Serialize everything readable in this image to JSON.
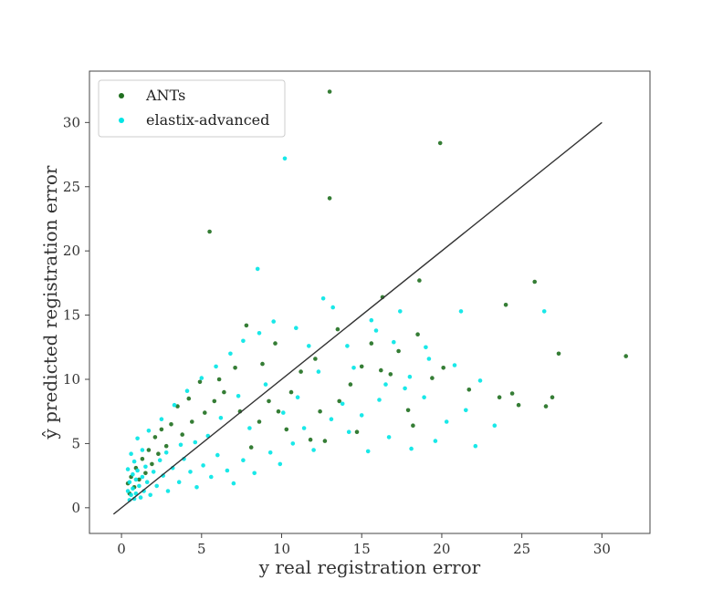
{
  "chart_data": {
    "type": "scatter",
    "xlabel": "y real registration error",
    "ylabel": "ŷ predicted registration error",
    "x_ticks": [
      0,
      5,
      10,
      15,
      20,
      25,
      30
    ],
    "y_ticks": [
      0,
      5,
      10,
      15,
      20,
      25,
      30
    ],
    "xlim": [
      -2,
      33
    ],
    "ylim": [
      -2,
      34
    ],
    "grid": false,
    "legend_position": "top-left",
    "reference_line": {
      "from": [
        -0.5,
        -0.5
      ],
      "to": [
        30,
        30
      ],
      "color": "#333333"
    },
    "series": [
      {
        "name": "ANTs",
        "color": "#1f6f1f",
        "points": [
          [
            13.0,
            32.4
          ],
          [
            19.9,
            28.4
          ],
          [
            13.0,
            24.1
          ],
          [
            5.5,
            21.5
          ],
          [
            18.6,
            17.7
          ],
          [
            25.8,
            17.6
          ],
          [
            16.3,
            16.4
          ],
          [
            24.0,
            15.8
          ],
          [
            31.5,
            11.8
          ],
          [
            27.3,
            12.0
          ],
          [
            26.9,
            8.6
          ],
          [
            26.5,
            7.9
          ],
          [
            24.8,
            8.0
          ],
          [
            24.4,
            8.9
          ],
          [
            23.6,
            8.6
          ],
          [
            20.1,
            10.9
          ],
          [
            18.5,
            13.5
          ],
          [
            17.3,
            12.2
          ],
          [
            16.2,
            10.7
          ],
          [
            15.0,
            11.0
          ],
          [
            14.3,
            9.6
          ],
          [
            13.6,
            8.3
          ],
          [
            12.4,
            7.5
          ],
          [
            11.8,
            5.3
          ],
          [
            12.7,
            5.2
          ],
          [
            10.6,
            9.0
          ],
          [
            9.8,
            7.5
          ],
          [
            9.2,
            8.3
          ],
          [
            8.6,
            6.7
          ],
          [
            7.4,
            7.5
          ],
          [
            7.1,
            10.9
          ],
          [
            6.4,
            9.0
          ],
          [
            6.1,
            10.0
          ],
          [
            5.8,
            8.3
          ],
          [
            5.2,
            7.4
          ],
          [
            4.9,
            9.8
          ],
          [
            4.4,
            6.7
          ],
          [
            4.2,
            8.5
          ],
          [
            3.8,
            5.7
          ],
          [
            3.5,
            7.9
          ],
          [
            3.1,
            6.5
          ],
          [
            2.8,
            4.8
          ],
          [
            2.5,
            6.1
          ],
          [
            2.3,
            4.2
          ],
          [
            2.1,
            5.5
          ],
          [
            1.9,
            3.4
          ],
          [
            1.7,
            4.5
          ],
          [
            1.5,
            2.7
          ],
          [
            1.3,
            3.8
          ],
          [
            1.1,
            2.2
          ],
          [
            0.9,
            3.1
          ],
          [
            0.8,
            1.6
          ],
          [
            0.6,
            2.4
          ],
          [
            0.5,
            1.1
          ],
          [
            0.4,
            1.9
          ],
          [
            11.2,
            10.6
          ],
          [
            12.1,
            11.6
          ],
          [
            8.8,
            11.2
          ],
          [
            9.6,
            12.8
          ],
          [
            7.8,
            14.2
          ],
          [
            13.5,
            13.9
          ],
          [
            15.6,
            12.8
          ],
          [
            16.8,
            10.4
          ],
          [
            17.9,
            7.6
          ],
          [
            19.4,
            10.1
          ],
          [
            21.7,
            9.2
          ],
          [
            18.2,
            6.4
          ],
          [
            14.7,
            5.9
          ],
          [
            10.3,
            6.1
          ],
          [
            8.1,
            4.7
          ]
        ]
      },
      {
        "name": "elastix-advanced",
        "color": "#00e5e5",
        "points": [
          [
            10.2,
            27.2
          ],
          [
            8.5,
            18.6
          ],
          [
            12.6,
            16.3
          ],
          [
            13.2,
            15.6
          ],
          [
            21.2,
            15.3
          ],
          [
            26.4,
            15.3
          ],
          [
            17.4,
            15.3
          ],
          [
            15.6,
            14.6
          ],
          [
            14.1,
            12.6
          ],
          [
            19.0,
            12.5
          ],
          [
            20.8,
            11.1
          ],
          [
            18.0,
            10.2
          ],
          [
            16.5,
            9.6
          ],
          [
            22.4,
            9.9
          ],
          [
            21.5,
            7.6
          ],
          [
            23.3,
            6.4
          ],
          [
            22.1,
            4.8
          ],
          [
            19.6,
            5.2
          ],
          [
            18.1,
            4.6
          ],
          [
            16.7,
            5.5
          ],
          [
            15.4,
            4.4
          ],
          [
            14.2,
            5.9
          ],
          [
            13.1,
            6.9
          ],
          [
            12.0,
            4.5
          ],
          [
            11.4,
            6.2
          ],
          [
            10.7,
            5.0
          ],
          [
            9.9,
            3.4
          ],
          [
            9.3,
            4.3
          ],
          [
            8.3,
            2.7
          ],
          [
            7.6,
            3.7
          ],
          [
            7.0,
            1.9
          ],
          [
            6.6,
            2.9
          ],
          [
            6.0,
            4.1
          ],
          [
            5.6,
            2.4
          ],
          [
            5.1,
            3.3
          ],
          [
            4.7,
            1.6
          ],
          [
            4.3,
            2.8
          ],
          [
            3.9,
            3.8
          ],
          [
            3.6,
            2.0
          ],
          [
            3.2,
            3.1
          ],
          [
            2.9,
            1.3
          ],
          [
            2.6,
            2.5
          ],
          [
            2.4,
            3.7
          ],
          [
            2.2,
            1.7
          ],
          [
            2.0,
            2.8
          ],
          [
            1.8,
            1.0
          ],
          [
            1.6,
            2.0
          ],
          [
            1.5,
            3.2
          ],
          [
            1.4,
            1.3
          ],
          [
            1.3,
            2.4
          ],
          [
            1.2,
            0.8
          ],
          [
            1.1,
            1.7
          ],
          [
            1.0,
            2.9
          ],
          [
            0.9,
            1.1
          ],
          [
            0.9,
            2.2
          ],
          [
            0.8,
            3.6
          ],
          [
            0.8,
            0.7
          ],
          [
            0.7,
            1.5
          ],
          [
            0.7,
            2.6
          ],
          [
            0.6,
            1.0
          ],
          [
            0.6,
            4.2
          ],
          [
            0.5,
            2.0
          ],
          [
            0.5,
            0.6
          ],
          [
            0.4,
            1.3
          ],
          [
            0.4,
            3.0
          ],
          [
            1.3,
            4.5
          ],
          [
            1.0,
            5.4
          ],
          [
            1.7,
            6.0
          ],
          [
            2.5,
            6.9
          ],
          [
            3.3,
            8.0
          ],
          [
            4.1,
            9.1
          ],
          [
            5.0,
            10.1
          ],
          [
            5.9,
            11.0
          ],
          [
            6.8,
            12.0
          ],
          [
            7.6,
            13.0
          ],
          [
            8.6,
            13.6
          ],
          [
            9.5,
            14.5
          ],
          [
            10.9,
            14.0
          ],
          [
            11.7,
            12.6
          ],
          [
            12.3,
            10.6
          ],
          [
            11.0,
            8.6
          ],
          [
            9.0,
            9.6
          ],
          [
            7.3,
            8.7
          ],
          [
            6.2,
            7.0
          ],
          [
            5.4,
            5.6
          ],
          [
            4.6,
            5.1
          ],
          [
            3.7,
            4.9
          ],
          [
            2.8,
            4.3
          ],
          [
            8.0,
            6.2
          ],
          [
            10.1,
            7.4
          ],
          [
            13.8,
            8.1
          ],
          [
            15.0,
            7.2
          ],
          [
            16.1,
            8.4
          ],
          [
            17.7,
            9.3
          ],
          [
            18.9,
            8.6
          ],
          [
            20.3,
            6.7
          ],
          [
            19.2,
            11.6
          ],
          [
            17.0,
            12.9
          ],
          [
            15.9,
            13.8
          ],
          [
            14.5,
            10.9
          ]
        ]
      }
    ]
  }
}
